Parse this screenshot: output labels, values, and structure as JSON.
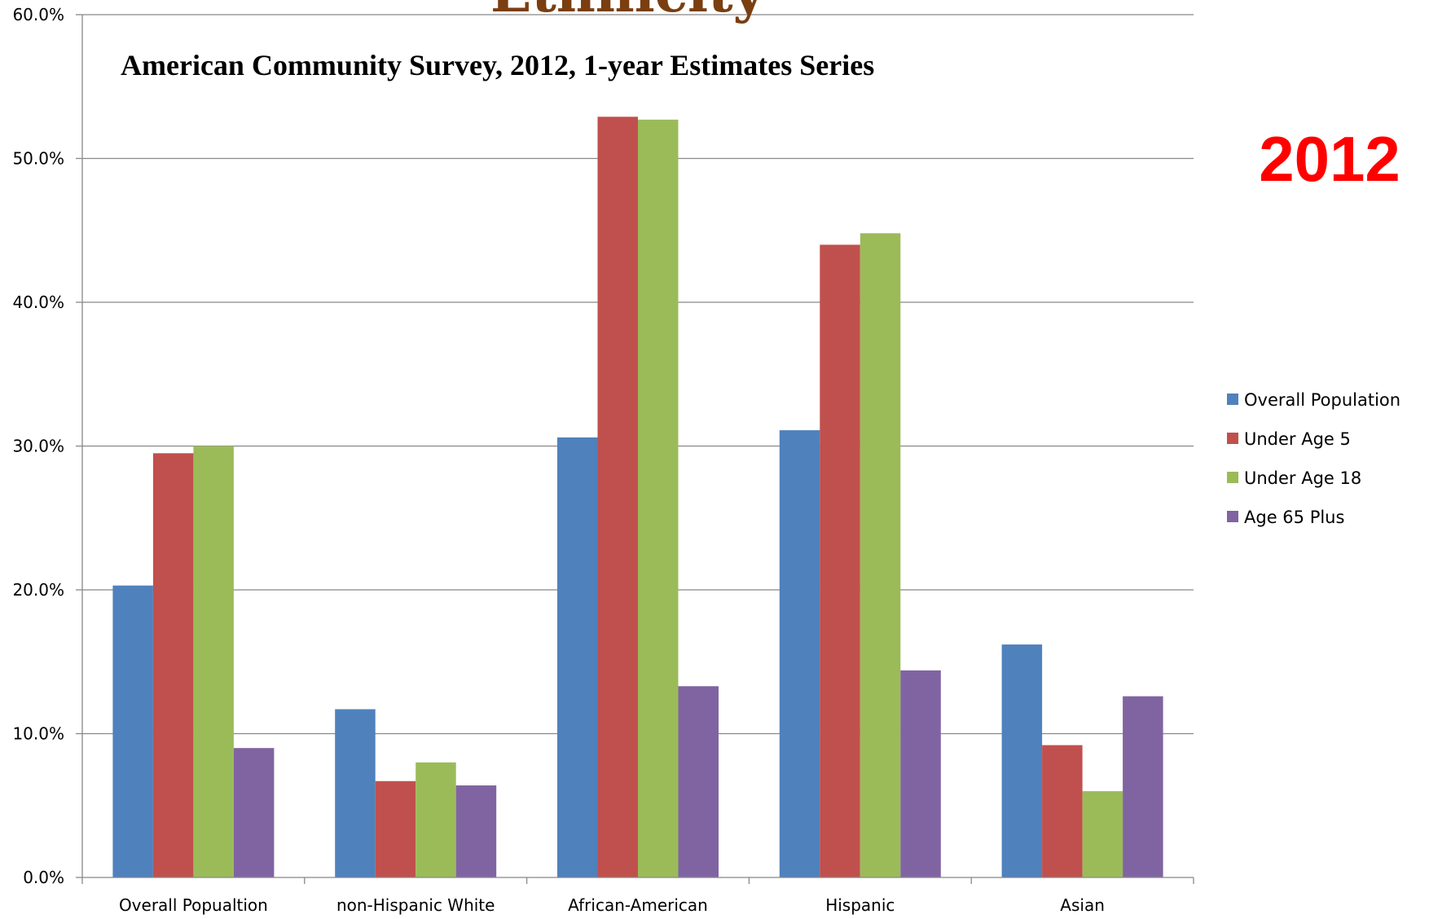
{
  "chart_data": {
    "type": "bar",
    "title": "Ethnicity",
    "subtitle": "American Community Survey, 2012, 1-year Estimates Series",
    "year_label": "2012",
    "categories": [
      "Overall Popualtion",
      "non-Hispanic White",
      "African-American",
      "Hispanic",
      "Asian"
    ],
    "series": [
      {
        "name": "Overall Population",
        "color": "#4f81bd",
        "values": [
          20.3,
          11.7,
          30.6,
          31.1,
          16.2
        ]
      },
      {
        "name": "Under Age 5",
        "color": "#c0504d",
        "values": [
          29.5,
          6.7,
          52.9,
          44.0,
          9.2
        ]
      },
      {
        "name": "Under Age 18",
        "color": "#9bbb59",
        "values": [
          30.0,
          8.0,
          52.7,
          44.8,
          6.0
        ]
      },
      {
        "name": "Age 65 Plus",
        "color": "#8064a2",
        "values": [
          9.0,
          6.4,
          13.3,
          14.4,
          12.6
        ]
      }
    ],
    "yticks": [
      "0.0%",
      "10.0%",
      "20.0%",
      "30.0%",
      "40.0%",
      "50.0%",
      "60.0%"
    ],
    "ylim": [
      0,
      60
    ],
    "grid": true,
    "legend": "right"
  }
}
